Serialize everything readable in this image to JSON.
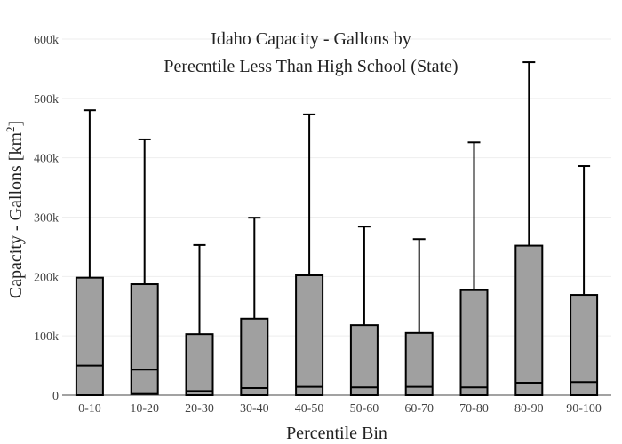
{
  "chart_data": {
    "type": "box",
    "title_line1": "Idaho Capacity - Gallons by",
    "title_line2": "Perecntile Less Than High School (State)",
    "xlabel": "Percentile Bin",
    "ylabel_main": "Capacity - Gallons  [km",
    "ylabel_sup": "2",
    "ylabel_end": "]",
    "ylim": [
      0,
      600000
    ],
    "y_ticks": [
      {
        "value": 0,
        "label": "0"
      },
      {
        "value": 100000,
        "label": "100k"
      },
      {
        "value": 200000,
        "label": "200k"
      },
      {
        "value": 300000,
        "label": "300k"
      },
      {
        "value": 400000,
        "label": "400k"
      },
      {
        "value": 500000,
        "label": "500k"
      },
      {
        "value": 600000,
        "label": "600k"
      }
    ],
    "categories": [
      "0-10",
      "10-20",
      "20-30",
      "30-40",
      "40-50",
      "50-60",
      "60-70",
      "70-80",
      "80-90",
      "90-100"
    ],
    "boxes": [
      {
        "min": 0,
        "q1": 0,
        "median": 50000,
        "q3": 198000,
        "max": 480000
      },
      {
        "min": 0,
        "q1": 2000,
        "median": 43000,
        "q3": 187000,
        "max": 431000
      },
      {
        "min": 0,
        "q1": 0,
        "median": 7000,
        "q3": 103000,
        "max": 253000
      },
      {
        "min": 0,
        "q1": 0,
        "median": 12000,
        "q3": 129000,
        "max": 299000
      },
      {
        "min": 0,
        "q1": 0,
        "median": 14000,
        "q3": 202000,
        "max": 473000
      },
      {
        "min": 0,
        "q1": 0,
        "median": 13000,
        "q3": 118000,
        "max": 284000
      },
      {
        "min": 0,
        "q1": 0,
        "median": 14000,
        "q3": 105000,
        "max": 263000
      },
      {
        "min": 0,
        "q1": 0,
        "median": 13000,
        "q3": 177000,
        "max": 426000
      },
      {
        "min": 0,
        "q1": 0,
        "median": 21000,
        "q3": 252000,
        "max": 561000
      },
      {
        "min": 0,
        "q1": 0,
        "median": 22000,
        "q3": 169000,
        "max": 386000
      }
    ],
    "box_color": "#a0a0a0",
    "line_color": "#000000",
    "grid": true,
    "grid_color": "#eeeeee"
  }
}
